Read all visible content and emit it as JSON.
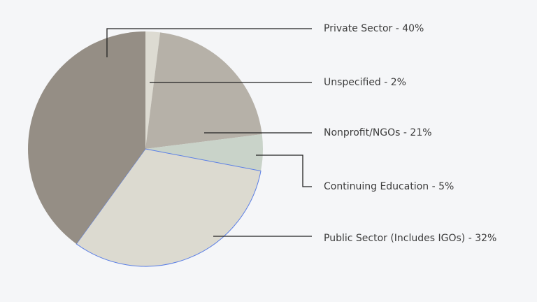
{
  "chart_data": {
    "type": "pie",
    "slices": [
      {
        "label": "Unspecified - 2%",
        "value": 2,
        "color": "#dddbd2"
      },
      {
        "label": "Nonprofit/NGOs - 21%",
        "value": 21,
        "color": "#b6b1a8"
      },
      {
        "label": "Continuing Education - 5%",
        "value": 5,
        "color": "#c9d3c9"
      },
      {
        "label": "Public Sector (Includes IGOs) - 32%",
        "value": 32,
        "color": "#dcdad0",
        "outline": "#5b7fe6"
      },
      {
        "label": "Private Sector - 40%",
        "value": 40,
        "color": "#958e85"
      }
    ],
    "start": "top",
    "direction": "clockwise",
    "legend": "callout labels on the right"
  }
}
